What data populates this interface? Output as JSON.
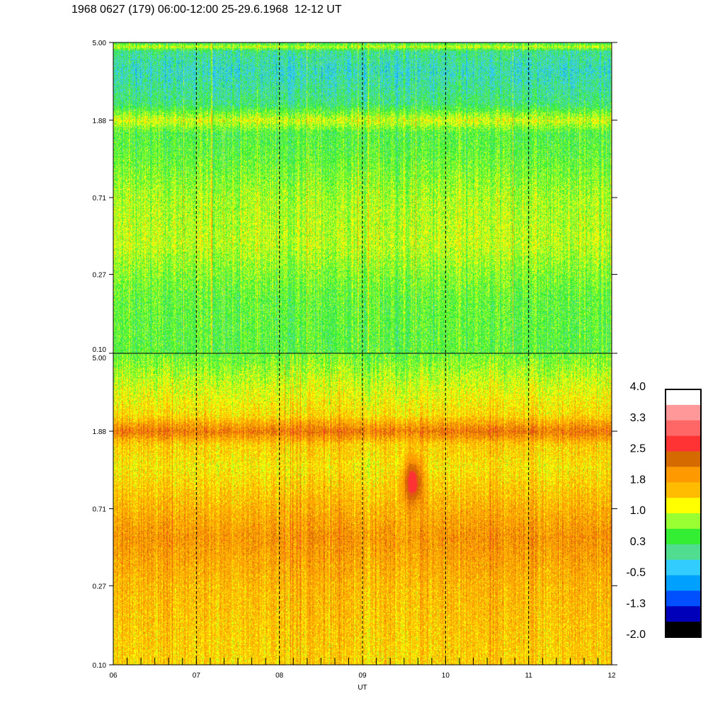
{
  "title": "1968 0627 (179) 06:00-12:00 25-29.6.1968  12-12 UT",
  "chart_data": {
    "type": "heatmap",
    "title": "1968 0627 (179) 06:00-12:00 25-29.6.1968  12-12 UT",
    "xlabel": "UT",
    "ylabel": "",
    "x_tick_labels": [
      "06",
      "07",
      "08",
      "09",
      "10",
      "11",
      "12"
    ],
    "xlim": [
      6,
      12
    ],
    "x_minor_tick_interval_hours": 0.1667,
    "x_dashed_gridlines_at": [
      7,
      8,
      9,
      10,
      11
    ],
    "y_scale": "log",
    "y_tick_labels": [
      "5.00",
      "1.88",
      "0.71",
      "0.27",
      "0.10"
    ],
    "ylim": [
      0.1,
      5.0
    ],
    "panels": [
      {
        "name": "top",
        "profile_note_levels": [
          [
            0.1,
            0.5
          ],
          [
            0.2,
            0.55
          ],
          [
            0.27,
            0.7
          ],
          [
            0.4,
            0.95
          ],
          [
            0.71,
            0.85
          ],
          [
            1.2,
            0.55
          ],
          [
            1.6,
            0.45
          ],
          [
            1.88,
            1.05
          ],
          [
            2.3,
            0.2
          ],
          [
            3.5,
            -0.1
          ],
          [
            4.5,
            0.1
          ],
          [
            4.75,
            1.0
          ],
          [
            5.0,
            0.3
          ]
        ]
      },
      {
        "name": "bottom",
        "profile_note_levels": [
          [
            0.1,
            1.45
          ],
          [
            0.27,
            1.65
          ],
          [
            0.5,
            1.95
          ],
          [
            0.71,
            1.7
          ],
          [
            1.2,
            1.3
          ],
          [
            1.6,
            1.5
          ],
          [
            1.88,
            2.2
          ],
          [
            2.3,
            1.4
          ],
          [
            3.5,
            1.0
          ],
          [
            5.0,
            0.6
          ]
        ],
        "features": [
          {
            "ut": 9.6,
            "freq": 1.0,
            "level": 2.8
          }
        ]
      }
    ],
    "colorbar": {
      "range": [
        -2.0,
        4.0
      ],
      "tick_labels": [
        "4.0",
        "3.3",
        "2.5",
        "1.8",
        "1.0",
        "0.3",
        "-0.5",
        "-1.3",
        "-2.0"
      ],
      "colors_top_to_bottom": [
        "#ffffff",
        "#ff9999",
        "#ff6666",
        "#ff3333",
        "#d46a00",
        "#ff9900",
        "#ffbb00",
        "#ffff00",
        "#99ff33",
        "#33ee33",
        "#50dd90",
        "#33ccff",
        "#00a0ff",
        "#0050ff",
        "#0000bb",
        "#000000"
      ]
    }
  }
}
